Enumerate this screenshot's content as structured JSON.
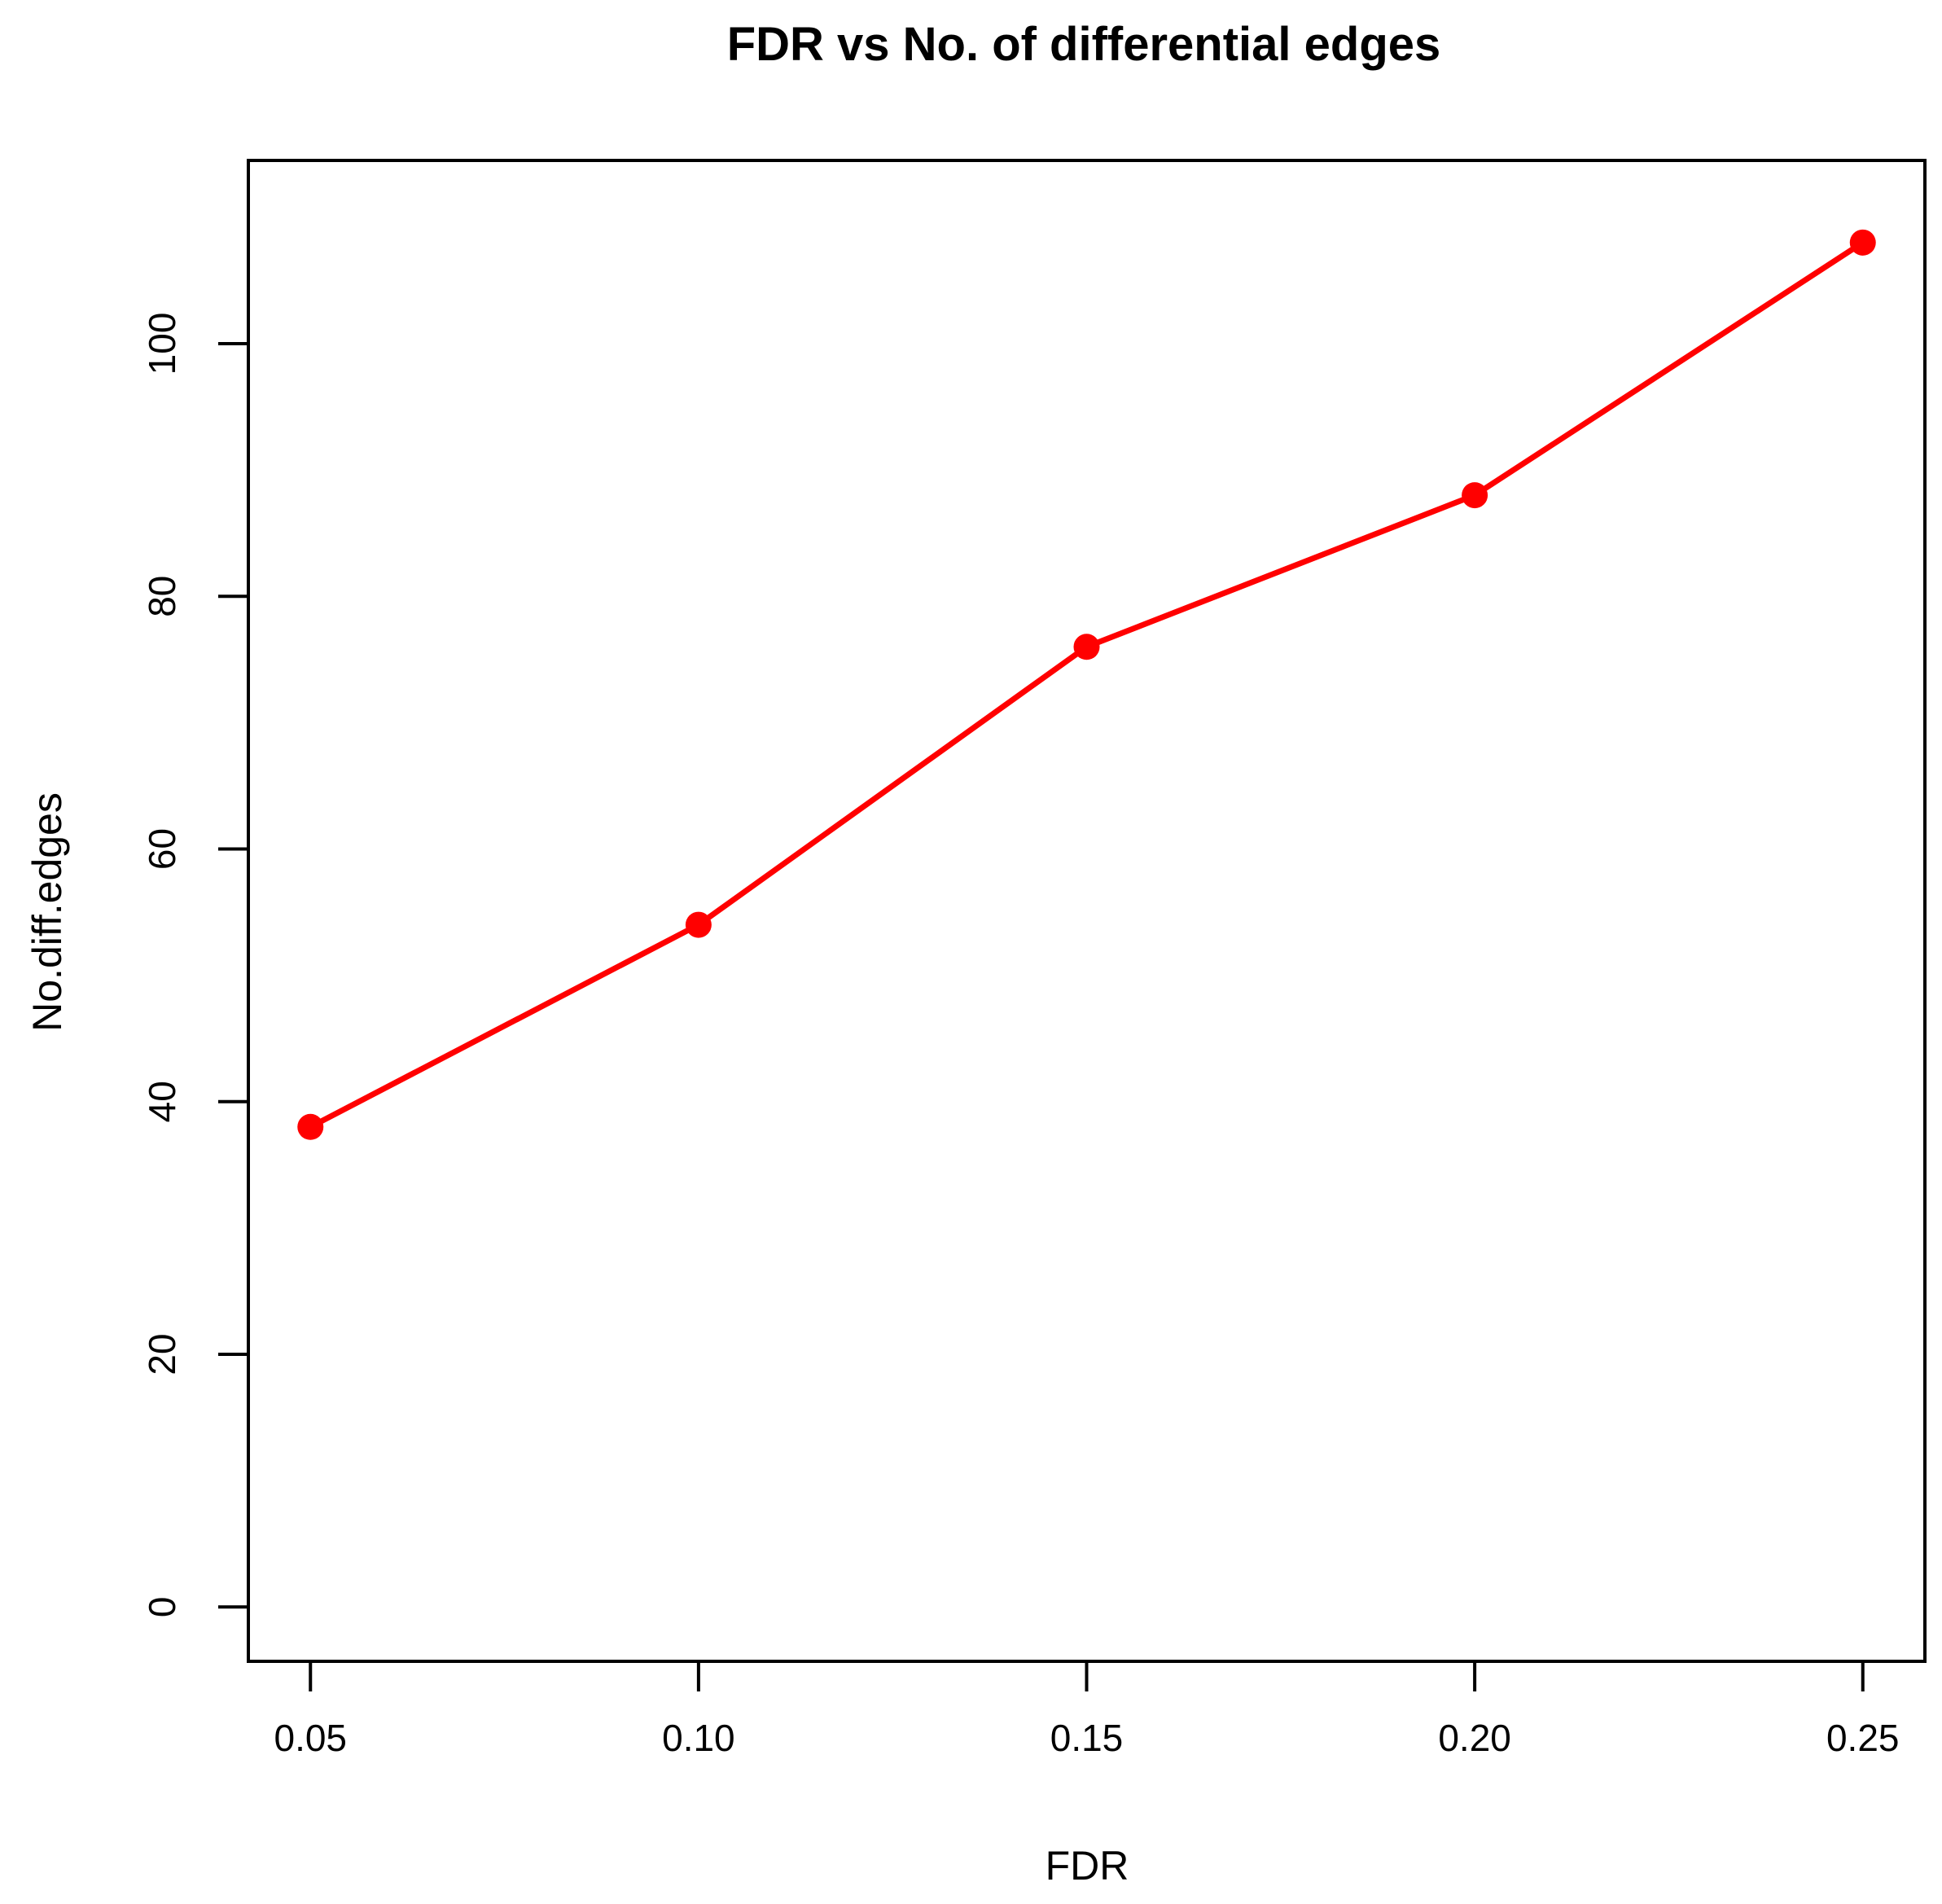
{
  "chart_data": {
    "type": "line",
    "title": "FDR vs No. of differential edges",
    "xlabel": "FDR",
    "ylabel": "No.diff.edges",
    "x": [
      0.05,
      0.1,
      0.15,
      0.2,
      0.25
    ],
    "series": [
      {
        "values": [
          38,
          54,
          76,
          88,
          108
        ],
        "color": "#ff0000",
        "marker": "filled-circle"
      }
    ],
    "x_ticks": [
      "0.05",
      "0.10",
      "0.15",
      "0.20",
      "0.25"
    ],
    "y_ticks": [
      "0",
      "20",
      "40",
      "60",
      "80",
      "100"
    ],
    "xlim": [
      0.042,
      0.258
    ],
    "ylim": [
      -4.3,
      114.5
    ],
    "grid": false,
    "legend": "none",
    "axis_color": "#000000"
  }
}
